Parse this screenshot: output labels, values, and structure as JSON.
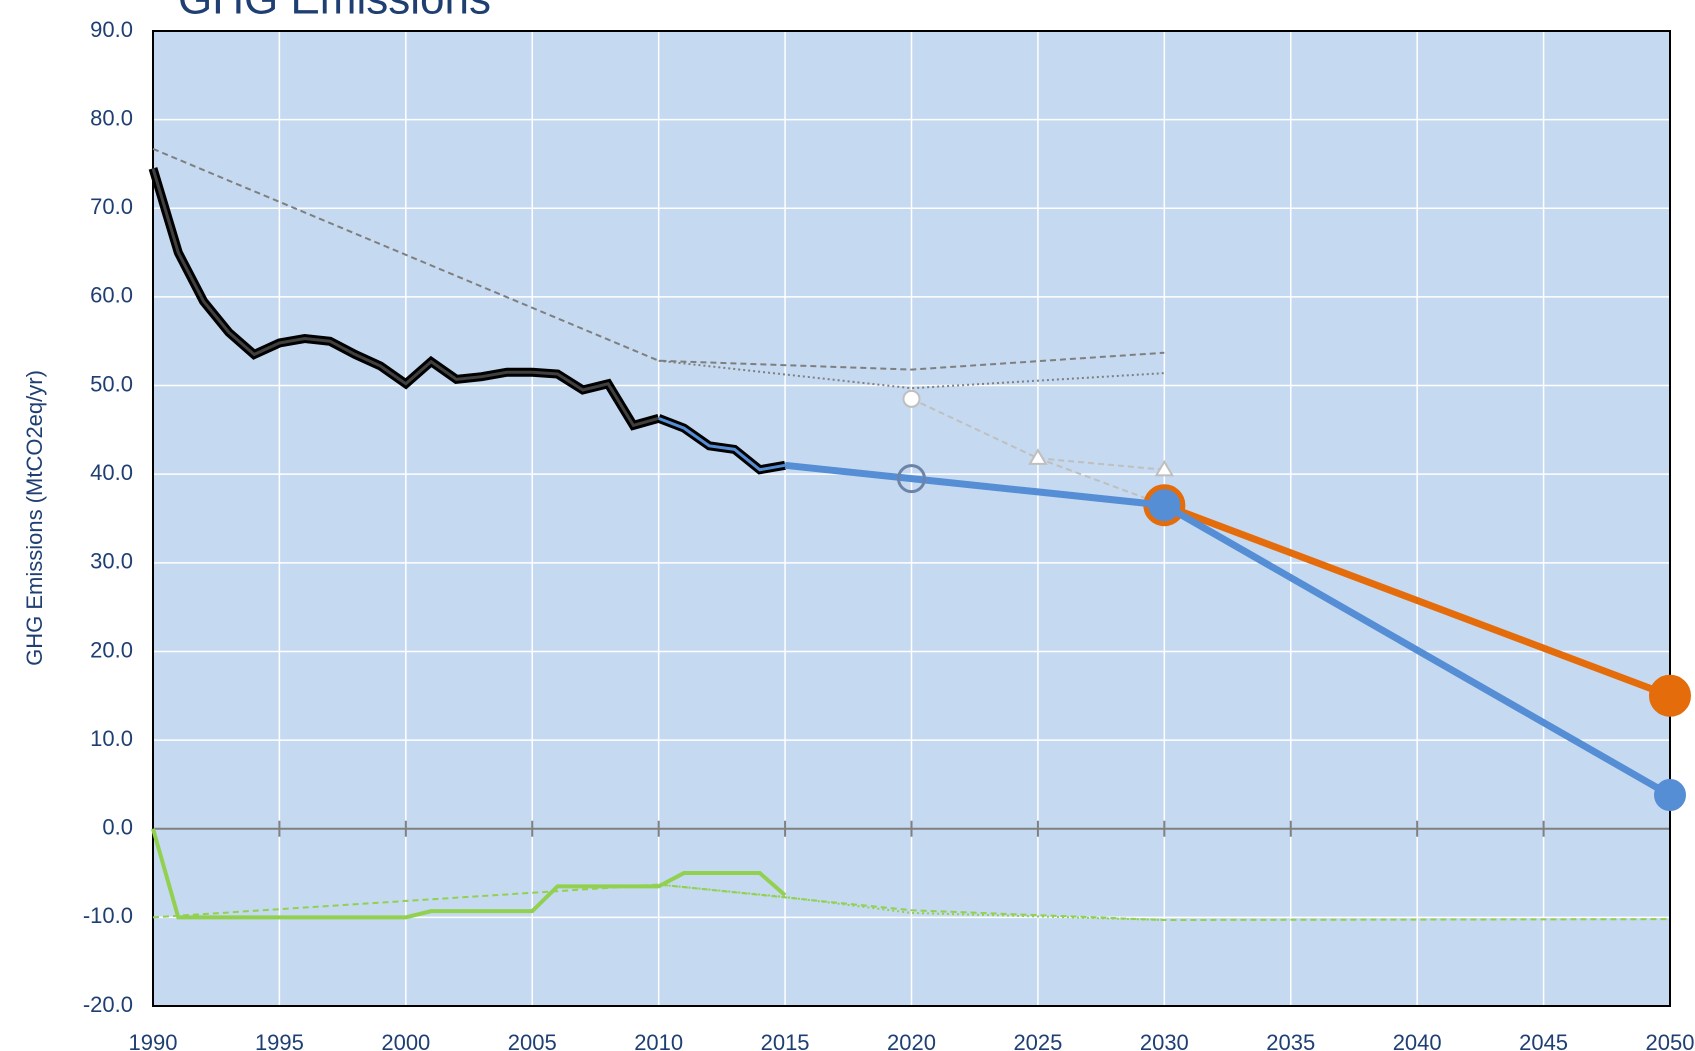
{
  "chart_data": {
    "type": "line",
    "title": "GHG Emissions",
    "y_label": "GHG Emissions (MtCO2eq/yr)",
    "xlim": [
      1990,
      2050
    ],
    "ylim": [
      -20,
      90
    ],
    "xticks": [
      1990,
      1995,
      2000,
      2005,
      2010,
      2015,
      2020,
      2025,
      2030,
      2035,
      2040,
      2045,
      2050
    ],
    "yticks": [
      {
        "value": -20,
        "label": "-20.0"
      },
      {
        "value": -10,
        "label": "-10.0"
      },
      {
        "value": 0,
        "label": "0.0"
      },
      {
        "value": 10,
        "label": "10.0"
      },
      {
        "value": 20,
        "label": "20.0"
      },
      {
        "value": 30,
        "label": "30.0"
      },
      {
        "value": 40,
        "label": "40.0"
      },
      {
        "value": 50,
        "label": "50.0"
      },
      {
        "value": 60,
        "label": "60.0"
      },
      {
        "value": 70,
        "label": "70.0"
      },
      {
        "value": 80,
        "label": "80.0"
      },
      {
        "value": 90,
        "label": "90.0"
      }
    ],
    "grid": true,
    "plot_color": "#c5d9f1",
    "series": [
      {
        "x": [
          1990,
          2010,
          2020,
          2030
        ],
        "values": [
          76.7,
          52.8,
          51.8,
          53.7
        ],
        "color": "#7f7f7f",
        "line": "dashed",
        "width": 2,
        "marker": "none"
      },
      {
        "x": [
          2010,
          2020,
          2030
        ],
        "values": [
          52.8,
          49.7,
          51.4
        ],
        "color": "#7f7f7f",
        "line": "dotted",
        "width": 2,
        "marker": "none"
      },
      {
        "x": [
          2025,
          2030
        ],
        "values": [
          41.8,
          36.5
        ],
        "color": "#bfbfbf",
        "line": "dashed",
        "width": 2,
        "marker": "none"
      },
      {
        "x": [
          2020,
          2025,
          2030
        ],
        "values": [
          48.5,
          41.8,
          40.5
        ],
        "color": "#bfbfbf",
        "line": "dashed",
        "width": 2,
        "marker": "circle-triangle",
        "marker_size": 8,
        "marker_fill": "#ffffff"
      },
      {
        "x": [
          1990,
          1991,
          1992,
          1993,
          1994,
          1995,
          1996,
          1997,
          1998,
          1999,
          2000,
          2001,
          2002,
          2003,
          2004,
          2005,
          2006,
          2007,
          2008,
          2009,
          2010
        ],
        "values": [
          74.5,
          65,
          59.5,
          56,
          53.5,
          54.8,
          55.3,
          55,
          53.5,
          52.2,
          50.2,
          52.7,
          50.7,
          51,
          51.5,
          51.5,
          51.3,
          49.5,
          50.2,
          45.5,
          46.3
        ],
        "color": "#404040",
        "outline": "#000000",
        "line": "solid",
        "width": 3,
        "marker": "none"
      },
      {
        "x": [
          2010,
          2011,
          2012,
          2013,
          2014,
          2015
        ],
        "values": [
          46.3,
          45.2,
          43.2,
          42.8,
          40.5,
          41
        ],
        "color": "#558ed5",
        "outline": "#000000",
        "line": "solid",
        "width": 3,
        "marker": "none"
      },
      {
        "x": [
          2030,
          2050
        ],
        "values": [
          36.5,
          15
        ],
        "color": "#e46c0a",
        "line": "solid",
        "width": 7,
        "marker": "circle",
        "marker_size": 20,
        "marker_fill": "#e46c0a"
      },
      {
        "x": [
          2015,
          2020,
          2025,
          2030,
          2050
        ],
        "values": [
          41,
          39.5,
          38,
          36.5,
          3.8
        ],
        "color": "#558ed5",
        "line": "solid",
        "width": 7,
        "marker": "none"
      },
      {
        "x": [
          2030,
          2050
        ],
        "values": [
          36.5,
          3.8
        ],
        "color": "#558ed5",
        "line": "none",
        "marker": "circle",
        "marker_size": 15,
        "marker_fill": "#558ed5"
      },
      {
        "x": [
          2020
        ],
        "values": [
          39.5
        ],
        "color": "#6d84a8",
        "line": "none",
        "marker": "circle",
        "marker_size": 13,
        "marker_fill": "none"
      },
      {
        "x": [
          1990,
          1991,
          2000,
          2001,
          2005,
          2006,
          2010,
          2011,
          2014,
          2015
        ],
        "values": [
          0,
          -10,
          -10,
          -9.3,
          -9.3,
          -6.5,
          -6.5,
          -5,
          -5,
          -7.5
        ],
        "color": "#92d050",
        "line": "solid",
        "width": 4,
        "marker": "none"
      },
      {
        "x": [
          1990,
          2010,
          2020,
          2030,
          2050
        ],
        "values": [
          -10,
          -6.3,
          -9.2,
          -10.3,
          -10.2
        ],
        "color": "#92d050",
        "line": "dashed",
        "width": 2,
        "marker": "none"
      },
      {
        "x": [
          2010,
          2015,
          2020,
          2030
        ],
        "values": [
          -6.3,
          -7.7,
          -9.5,
          -10.3
        ],
        "color": "#92d050",
        "line": "dotted",
        "width": 2,
        "marker": "none"
      }
    ]
  }
}
